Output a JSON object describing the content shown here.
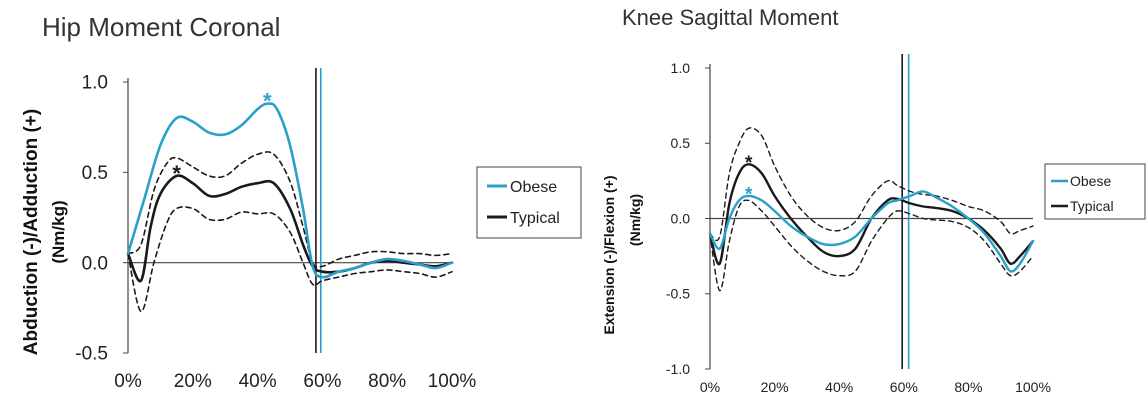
{
  "chart_data": [
    {
      "type": "line",
      "title": "Hip Moment Coronal",
      "ylabel_line1": "Abduction (-)/Adduction (+)",
      "ylabel_line2": "(Nm/kg)",
      "xlabel": "",
      "x_ticks": [
        "0%",
        "20%",
        "40%",
        "60%",
        "80%",
        "100%"
      ],
      "y_ticks": [
        "-0.5",
        "0.0",
        "0.5",
        "1.0"
      ],
      "xlim": [
        0,
        100
      ],
      "ylim": [
        -0.5,
        1.0
      ],
      "legend": {
        "placement": "right",
        "entries": [
          "Obese",
          "Typical"
        ]
      },
      "colors": {
        "obese": "#2aa0c8",
        "typical": "#1a1a1a",
        "sd": "#1a1a1a"
      },
      "series": [
        {
          "name": "Obese",
          "color": "#2aa0c8",
          "style": "solid",
          "x": [
            0,
            5,
            10,
            15,
            20,
            25,
            30,
            35,
            40,
            43,
            46,
            50,
            54,
            57,
            60,
            65,
            70,
            75,
            80,
            85,
            90,
            95,
            100
          ],
          "y": [
            0.05,
            0.35,
            0.65,
            0.8,
            0.78,
            0.72,
            0.71,
            0.76,
            0.85,
            0.88,
            0.85,
            0.65,
            0.3,
            -0.02,
            -0.08,
            -0.05,
            -0.03,
            0.0,
            0.02,
            0.01,
            -0.01,
            -0.03,
            0.0
          ]
        },
        {
          "name": "Typical",
          "color": "#1a1a1a",
          "style": "solid",
          "x": [
            0,
            4,
            7,
            10,
            15,
            20,
            25,
            30,
            35,
            40,
            45,
            50,
            54,
            57,
            60,
            65,
            70,
            75,
            80,
            85,
            90,
            95,
            100
          ],
          "y": [
            0.05,
            -0.1,
            0.2,
            0.38,
            0.48,
            0.44,
            0.37,
            0.38,
            0.42,
            0.44,
            0.44,
            0.3,
            0.1,
            -0.02,
            -0.05,
            -0.05,
            -0.03,
            0.0,
            0.01,
            0.0,
            -0.01,
            -0.02,
            0.0
          ]
        },
        {
          "name": "",
          "color": "#1a1a1a",
          "style": "dashed",
          "x": [
            0,
            4,
            8,
            12,
            15,
            20,
            25,
            30,
            35,
            40,
            45,
            50,
            54,
            57,
            60,
            65,
            70,
            75,
            80,
            85,
            90,
            95,
            100
          ],
          "y": [
            0.05,
            0.1,
            0.4,
            0.55,
            0.58,
            0.53,
            0.48,
            0.48,
            0.55,
            0.6,
            0.6,
            0.45,
            0.2,
            0.0,
            -0.02,
            0.02,
            0.04,
            0.06,
            0.06,
            0.05,
            0.05,
            0.04,
            0.05
          ]
        },
        {
          "name": "",
          "color": "#1a1a1a",
          "style": "dashed",
          "x": [
            0,
            4,
            8,
            12,
            15,
            20,
            25,
            30,
            35,
            40,
            45,
            50,
            54,
            57,
            60,
            65,
            70,
            75,
            80,
            85,
            90,
            95,
            100
          ],
          "y": [
            0.05,
            -0.27,
            0.0,
            0.22,
            0.3,
            0.3,
            0.24,
            0.24,
            0.28,
            0.27,
            0.27,
            0.17,
            0.0,
            -0.12,
            -0.1,
            -0.08,
            -0.06,
            -0.05,
            -0.04,
            -0.05,
            -0.06,
            -0.08,
            -0.05
          ]
        }
      ],
      "vertical_lines": [
        {
          "x": 58,
          "color": "#1a1a1a"
        },
        {
          "x": 59.5,
          "color": "#2aa0c8"
        }
      ],
      "annotations": [
        {
          "text": "*",
          "x": 15,
          "y": 0.52,
          "color": "#1a1a1a"
        },
        {
          "text": "*",
          "x": 43,
          "y": 0.92,
          "color": "#2aa0c8"
        }
      ]
    },
    {
      "type": "line",
      "title": "Knee Sagittal Moment",
      "ylabel_line1": "Extension (-)/Flexion (+)",
      "ylabel_line2": "(Nm/kg)",
      "xlabel": "",
      "x_ticks": [
        "0%",
        "20%",
        "40%",
        "60%",
        "80%",
        "100%"
      ],
      "y_ticks": [
        "-1.0",
        "-0.5",
        "0.0",
        "0.5",
        "1.0"
      ],
      "xlim": [
        0,
        100
      ],
      "ylim": [
        -1.0,
        1.0
      ],
      "legend": {
        "placement": "right",
        "entries": [
          "Obese",
          "Typical"
        ]
      },
      "colors": {
        "obese": "#2aa0c8",
        "typical": "#1a1a1a",
        "sd": "#1a1a1a"
      },
      "series": [
        {
          "name": "Obese",
          "color": "#2aa0c8",
          "style": "solid",
          "x": [
            0,
            3,
            6,
            9,
            12,
            16,
            20,
            25,
            30,
            35,
            40,
            45,
            50,
            55,
            58,
            62,
            66,
            70,
            75,
            80,
            85,
            90,
            93,
            96,
            100
          ],
          "y": [
            -0.1,
            -0.2,
            0.0,
            0.12,
            0.15,
            0.12,
            0.05,
            -0.05,
            -0.12,
            -0.17,
            -0.17,
            -0.12,
            0.0,
            0.1,
            0.12,
            0.15,
            0.18,
            0.14,
            0.08,
            0.0,
            -0.1,
            -0.25,
            -0.35,
            -0.3,
            -0.15
          ]
        },
        {
          "name": "Typical",
          "color": "#1a1a1a",
          "style": "solid",
          "x": [
            0,
            3,
            6,
            9,
            12,
            16,
            20,
            25,
            30,
            35,
            40,
            45,
            50,
            55,
            58,
            62,
            66,
            70,
            75,
            80,
            85,
            90,
            93,
            96,
            100
          ],
          "y": [
            -0.1,
            -0.3,
            0.1,
            0.3,
            0.36,
            0.3,
            0.15,
            0.0,
            -0.12,
            -0.22,
            -0.25,
            -0.2,
            0.0,
            0.12,
            0.13,
            0.1,
            0.08,
            0.07,
            0.05,
            0.0,
            -0.08,
            -0.2,
            -0.3,
            -0.25,
            -0.15
          ]
        },
        {
          "name": "",
          "color": "#1a1a1a",
          "style": "dashed",
          "x": [
            0,
            3,
            6,
            9,
            12,
            16,
            20,
            25,
            30,
            35,
            40,
            45,
            50,
            55,
            58,
            62,
            66,
            70,
            75,
            80,
            85,
            90,
            93,
            96,
            100
          ],
          "y": [
            -0.1,
            -0.12,
            0.3,
            0.5,
            0.6,
            0.55,
            0.35,
            0.15,
            0.02,
            -0.06,
            -0.08,
            -0.02,
            0.15,
            0.25,
            0.22,
            0.18,
            0.16,
            0.15,
            0.12,
            0.08,
            0.05,
            -0.02,
            -0.1,
            -0.08,
            -0.05
          ]
        },
        {
          "name": "",
          "color": "#1a1a1a",
          "style": "dashed",
          "x": [
            0,
            3,
            6,
            9,
            12,
            16,
            20,
            25,
            30,
            35,
            40,
            45,
            50,
            55,
            58,
            62,
            66,
            70,
            75,
            80,
            85,
            90,
            93,
            96,
            100
          ],
          "y": [
            -0.1,
            -0.48,
            -0.15,
            0.08,
            0.12,
            0.05,
            -0.05,
            -0.18,
            -0.28,
            -0.35,
            -0.38,
            -0.35,
            -0.15,
            0.0,
            0.05,
            0.03,
            0.0,
            -0.01,
            -0.02,
            -0.06,
            -0.15,
            -0.3,
            -0.38,
            -0.35,
            -0.25
          ]
        }
      ],
      "vertical_lines": [
        {
          "x": 59.5,
          "color": "#1a1a1a"
        },
        {
          "x": 61.5,
          "color": "#2aa0c8"
        }
      ],
      "annotations": [
        {
          "text": "*",
          "x": 12,
          "y": 0.4,
          "color": "#1a1a1a"
        },
        {
          "text": "*",
          "x": 12,
          "y": 0.19,
          "color": "#2aa0c8"
        }
      ]
    }
  ]
}
